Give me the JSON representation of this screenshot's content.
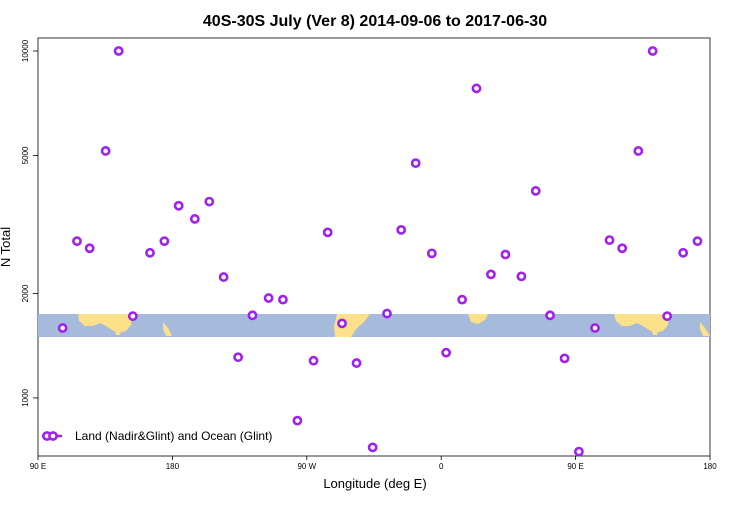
{
  "chart_data": {
    "type": "scatter",
    "title": "40S-30S July (Ver 8)   2014-09-06 to 2017-06-30",
    "xlabel": "Longitude (deg E)",
    "ylabel": "N Total",
    "x_axis": {
      "range": [
        90,
        540
      ],
      "ticks": [
        {
          "value": 90,
          "label": "90 E"
        },
        {
          "value": 180,
          "label": "180"
        },
        {
          "value": 270,
          "label": "90 W"
        },
        {
          "value": 360,
          "label": "0"
        },
        {
          "value": 450,
          "label": "90 E"
        },
        {
          "value": 540,
          "label": "180"
        }
      ]
    },
    "y_axis": {
      "scale": "log",
      "range": [
        680,
        10900
      ],
      "ticks": [
        {
          "value": 1000,
          "label": "1000"
        },
        {
          "value": 2000,
          "label": "2000"
        },
        {
          "value": 5000,
          "label": "5000"
        },
        {
          "value": 10000,
          "label": "10000"
        }
      ]
    },
    "grid": false,
    "legend": {
      "position": "bottom-left"
    },
    "series": [
      {
        "name": "Land (Nadir&Glint) and Ocean (Glint)",
        "color": "#a020f0",
        "marker": "open-circle",
        "points": [
          {
            "x": 106.5,
            "y": 1590
          },
          {
            "x": 116.1,
            "y": 2830
          },
          {
            "x": 124.6,
            "y": 2700
          },
          {
            "x": 135.3,
            "y": 5150
          },
          {
            "x": 144.0,
            "y": 10000
          },
          {
            "x": 153.5,
            "y": 1720
          },
          {
            "x": 165.0,
            "y": 2620
          },
          {
            "x": 174.6,
            "y": 2830
          },
          {
            "x": 184.2,
            "y": 3580
          },
          {
            "x": 195.0,
            "y": 3280
          },
          {
            "x": 204.7,
            "y": 3680
          },
          {
            "x": 214.3,
            "y": 2230
          },
          {
            "x": 224.0,
            "y": 1310
          },
          {
            "x": 233.6,
            "y": 1730
          },
          {
            "x": 244.4,
            "y": 1940
          },
          {
            "x": 254.0,
            "y": 1920
          },
          {
            "x": 263.7,
            "y": 860
          },
          {
            "x": 274.5,
            "y": 1280
          },
          {
            "x": 284.0,
            "y": 3000
          },
          {
            "x": 293.6,
            "y": 1640
          },
          {
            "x": 303.3,
            "y": 1260
          },
          {
            "x": 314.1,
            "y": 720
          },
          {
            "x": 323.7,
            "y": 1750
          },
          {
            "x": 333.2,
            "y": 3050
          },
          {
            "x": 342.9,
            "y": 4750
          },
          {
            "x": 353.7,
            "y": 2610
          },
          {
            "x": 363.3,
            "y": 1350
          },
          {
            "x": 374.0,
            "y": 1920
          },
          {
            "x": 383.6,
            "y": 7800
          },
          {
            "x": 393.3,
            "y": 2270
          },
          {
            "x": 403.0,
            "y": 2590
          },
          {
            "x": 413.7,
            "y": 2240
          },
          {
            "x": 423.3,
            "y": 3950
          },
          {
            "x": 432.9,
            "y": 1730
          },
          {
            "x": 442.6,
            "y": 1300
          },
          {
            "x": 452.2,
            "y": 700
          },
          {
            "x": 463.0,
            "y": 1590
          },
          {
            "x": 472.7,
            "y": 2850
          },
          {
            "x": 481.2,
            "y": 2700
          },
          {
            "x": 492.0,
            "y": 5150
          },
          {
            "x": 501.6,
            "y": 10000
          },
          {
            "x": 511.3,
            "y": 1720
          },
          {
            "x": 522.0,
            "y": 2620
          },
          {
            "x": 531.6,
            "y": 2830
          }
        ]
      }
    ],
    "map_band": {
      "ocean_color": "#a6bbdb",
      "land_color": "#fde08a"
    }
  }
}
